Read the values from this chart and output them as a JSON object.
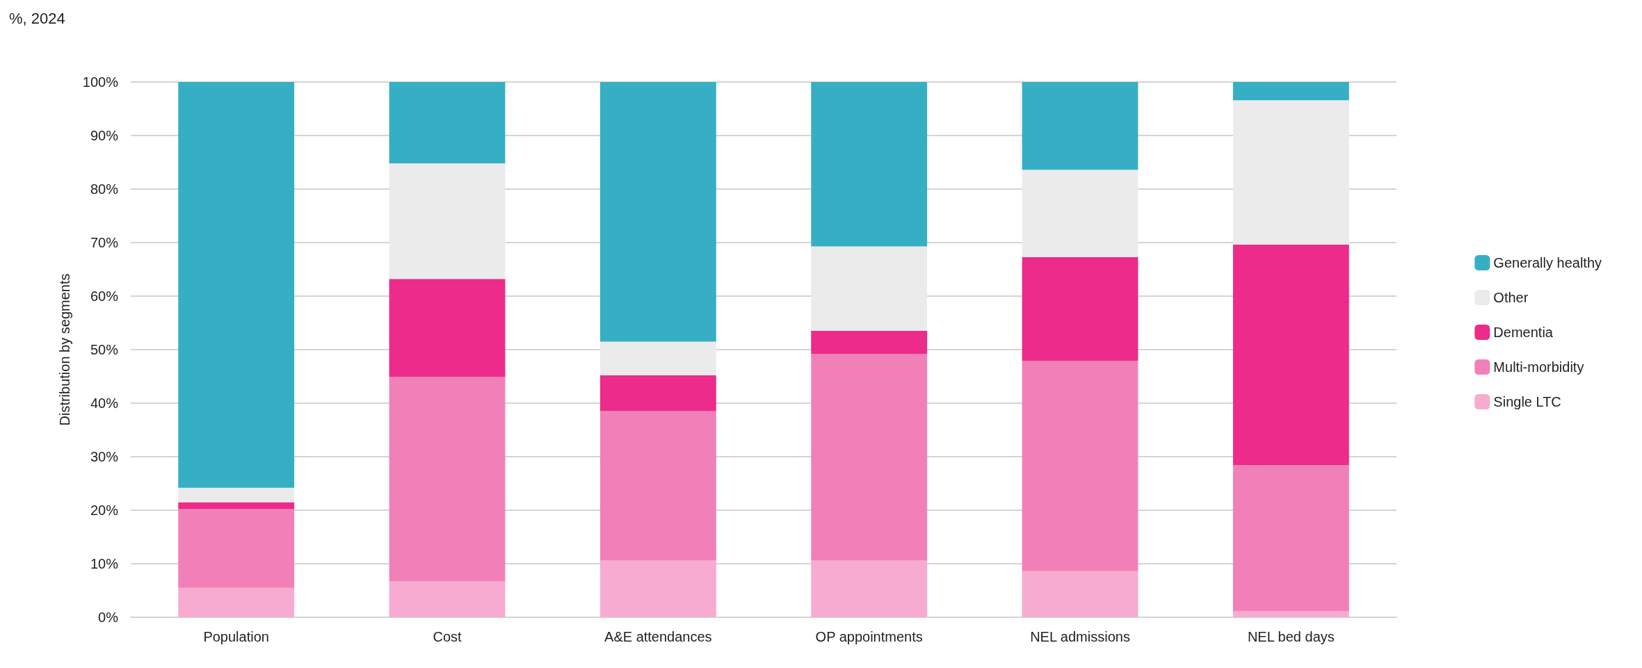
{
  "chart_data": {
    "type": "bar",
    "title": "%, 2024",
    "ylabel": "Distribution by segments",
    "stacked": true,
    "categories": [
      "Population",
      "Cost",
      "A&E attendances",
      "OP appointments",
      "NEL admissions",
      "NEL bed days"
    ],
    "series": [
      {
        "name": "Single LTC",
        "color": "#f7abd0",
        "values": [
          5.5,
          6.7,
          10.6,
          10.6,
          8.6,
          1.1
        ]
      },
      {
        "name": "Multi-morbidity",
        "color": "#f280b8",
        "values": [
          14.7,
          38.2,
          27.9,
          38.6,
          39.3,
          27.3
        ]
      },
      {
        "name": "Dementia",
        "color": "#ec2b8a",
        "values": [
          1.3,
          18.3,
          6.7,
          4.3,
          19.4,
          41.2
        ]
      },
      {
        "name": "Other",
        "color": "#ebebeb",
        "values": [
          2.7,
          21.6,
          6.3,
          15.8,
          16.3,
          27.0
        ]
      },
      {
        "name": "Generally healthy",
        "color": "#36afc5",
        "values": [
          75.8,
          15.2,
          48.5,
          30.7,
          16.4,
          3.4
        ]
      }
    ],
    "ylim": [
      0,
      100
    ],
    "yticks": [
      {
        "value": 0,
        "label": "0%"
      },
      {
        "value": 10,
        "label": "10%"
      },
      {
        "value": 20,
        "label": "20%"
      },
      {
        "value": 30,
        "label": "30%"
      },
      {
        "value": 40,
        "label": "40%"
      },
      {
        "value": 50,
        "label": "50%"
      },
      {
        "value": 60,
        "label": "60%"
      },
      {
        "value": 70,
        "label": "70%"
      },
      {
        "value": 80,
        "label": "80%"
      },
      {
        "value": 90,
        "label": "90%"
      },
      {
        "value": 100,
        "label": "100%"
      }
    ],
    "grid": true,
    "legend": "right"
  }
}
